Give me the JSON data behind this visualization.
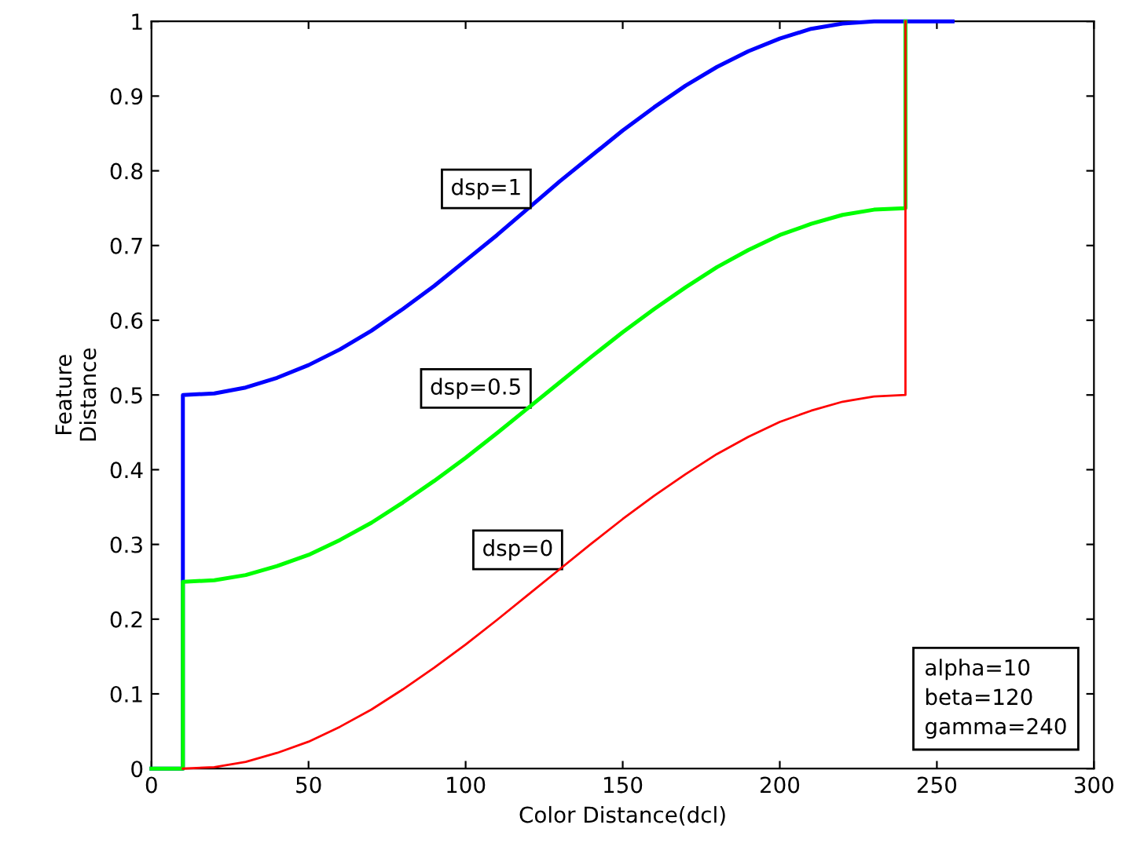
{
  "chart_data": {
    "type": "line",
    "xlabel": "Color Distance(dcl)",
    "ylabel": "Feature\nDistance",
    "xlim": [
      0,
      300
    ],
    "ylim": [
      0,
      1
    ],
    "xticks": [
      0,
      50,
      100,
      150,
      200,
      250,
      300
    ],
    "yticks": [
      0,
      0.1,
      0.2,
      0.3,
      0.4,
      0.5,
      0.6,
      0.7,
      0.8,
      0.9,
      1
    ],
    "grid": false,
    "legend": false,
    "marker": "none",
    "line_style": "solid",
    "series": [
      {
        "name": "dsp=1",
        "color": "#0000ff",
        "x": [
          0,
          10,
          10,
          20,
          30,
          40,
          50,
          60,
          70,
          80,
          90,
          100,
          110,
          120,
          130,
          140,
          150,
          160,
          170,
          180,
          190,
          200,
          210,
          220,
          230,
          240,
          255
        ],
        "values": [
          0,
          0,
          0.5,
          0.502,
          0.51,
          0.523,
          0.54,
          0.561,
          0.586,
          0.615,
          0.646,
          0.68,
          0.714,
          0.75,
          0.786,
          0.82,
          0.854,
          0.885,
          0.914,
          0.939,
          0.96,
          0.977,
          0.99,
          0.997,
          1,
          1,
          1
        ]
      },
      {
        "name": "dsp=0.5",
        "color": "#00ff00",
        "x": [
          0,
          10,
          10,
          20,
          30,
          40,
          50,
          60,
          70,
          80,
          90,
          100,
          110,
          120,
          130,
          140,
          150,
          160,
          170,
          180,
          190,
          200,
          210,
          220,
          230,
          240,
          240
        ],
        "values": [
          0,
          0,
          0.25,
          0.252,
          0.259,
          0.271,
          0.286,
          0.306,
          0.329,
          0.356,
          0.385,
          0.416,
          0.449,
          0.483,
          0.517,
          0.551,
          0.584,
          0.615,
          0.644,
          0.671,
          0.694,
          0.714,
          0.729,
          0.741,
          0.748,
          0.75,
          1
        ]
      },
      {
        "name": "dsp=0",
        "color": "#ff0000",
        "x": [
          10,
          20,
          30,
          40,
          50,
          60,
          70,
          80,
          90,
          100,
          110,
          120,
          130,
          140,
          150,
          160,
          170,
          180,
          190,
          200,
          210,
          220,
          230,
          240,
          240
        ],
        "values": [
          0,
          0.002,
          0.009,
          0.021,
          0.036,
          0.056,
          0.079,
          0.106,
          0.135,
          0.166,
          0.199,
          0.233,
          0.267,
          0.301,
          0.334,
          0.365,
          0.394,
          0.421,
          0.444,
          0.464,
          0.479,
          0.491,
          0.498,
          0.5,
          1
        ]
      }
    ],
    "annotations": [
      "alpha=10\nbeta=120\ngamma=240"
    ]
  }
}
